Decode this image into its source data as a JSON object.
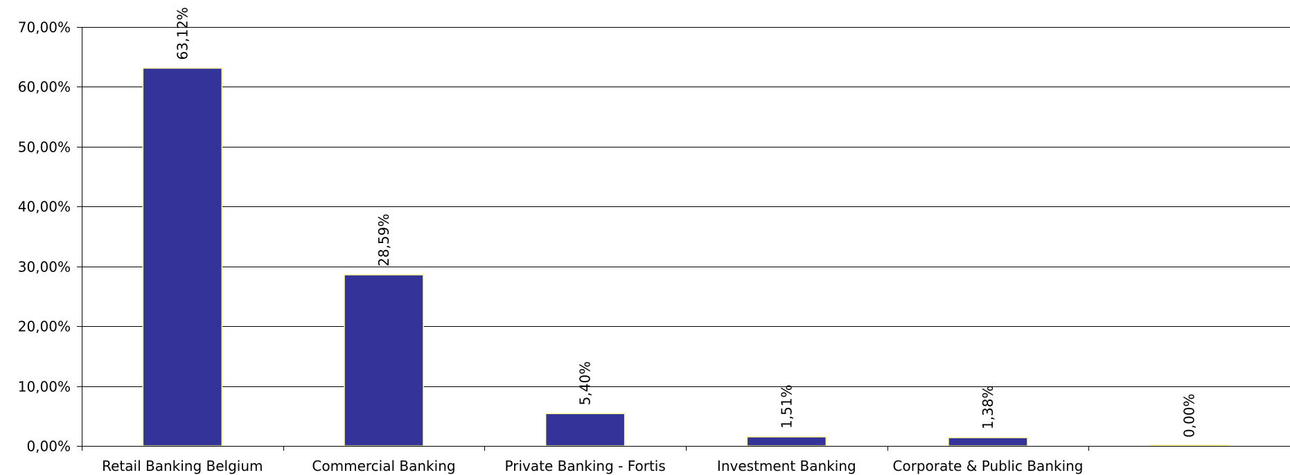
{
  "chart_data": {
    "type": "bar",
    "categories": [
      "Retail Banking Belgium",
      "Commercial Banking",
      "Private Banking - Fortis",
      "Investment Banking",
      "Corporate & Public Banking",
      ""
    ],
    "values": [
      63.12,
      28.59,
      5.4,
      1.51,
      1.38,
      0.0
    ],
    "data_labels": [
      "63,12%",
      "28,59%",
      "5,40%",
      "1,51%",
      "1,38%",
      "0,00%"
    ],
    "ylim": [
      0,
      70
    ],
    "yticks": [
      0,
      10,
      20,
      30,
      40,
      50,
      60,
      70
    ],
    "ytick_labels": [
      "0,00%",
      "10,00%",
      "20,00%",
      "30,00%",
      "40,00%",
      "50,00%",
      "60,00%",
      "70,00%"
    ],
    "grid": true,
    "title": "",
    "xlabel": "",
    "ylabel": "",
    "colors": {
      "bar_fill": "#333399",
      "bar_stroke": "#ffff99",
      "grid": "#000000"
    }
  }
}
